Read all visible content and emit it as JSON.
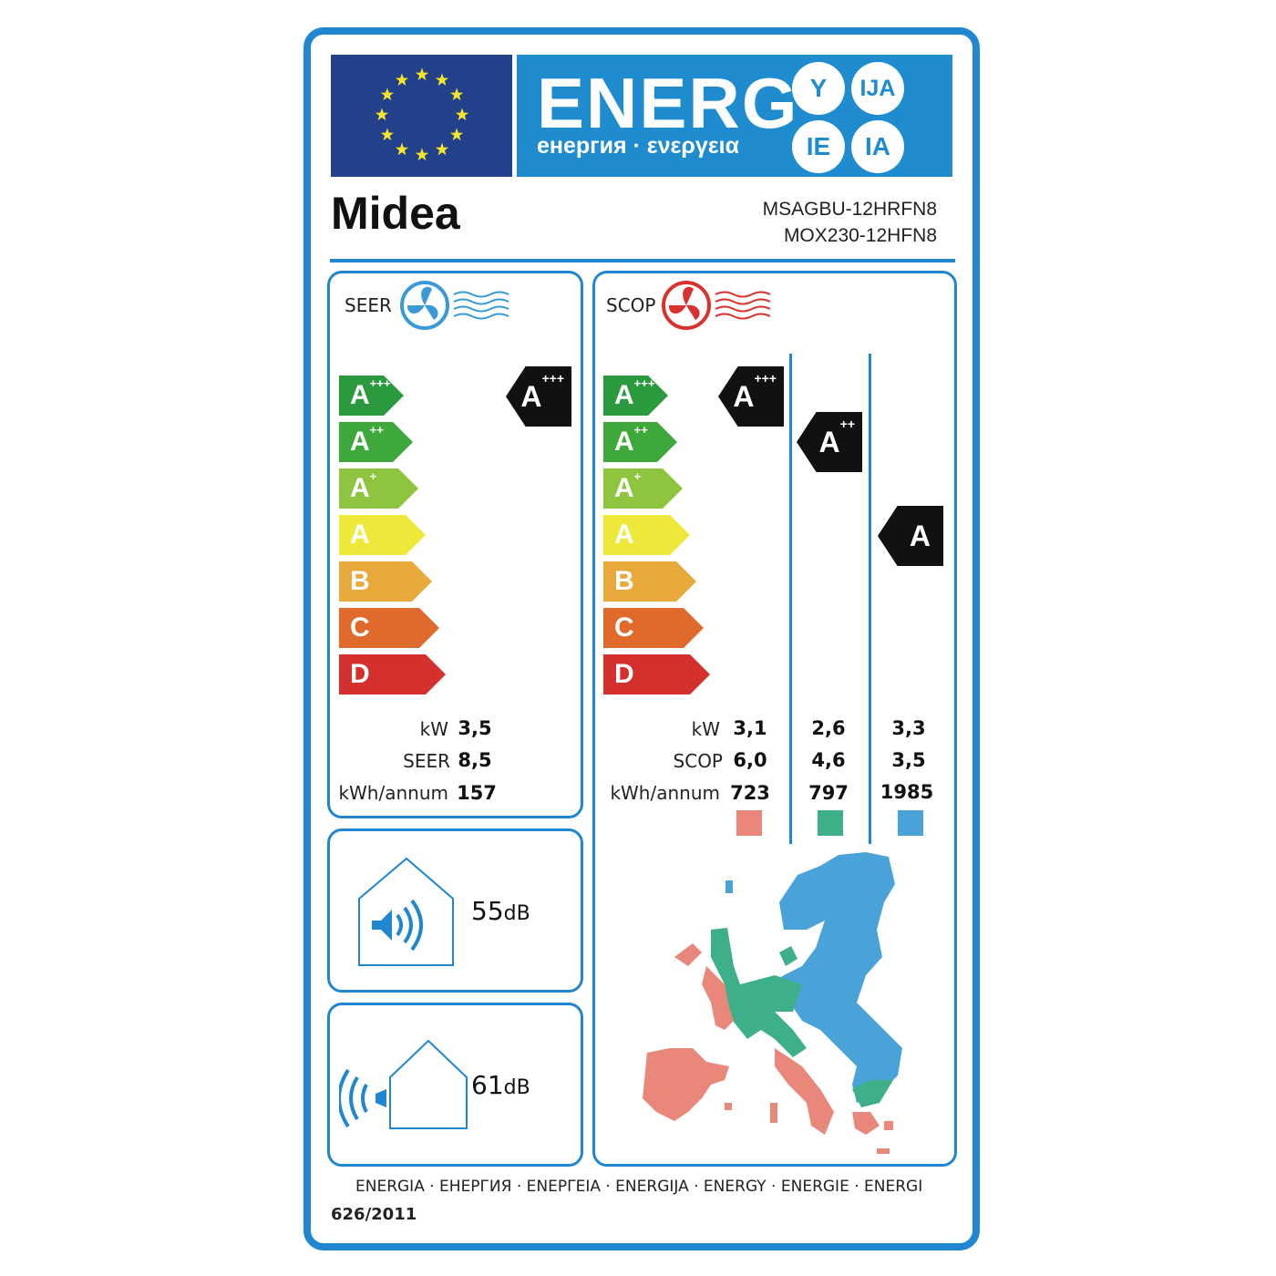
{
  "header": {
    "energy_word": "ENERG",
    "energy_subtitle": "енергия · ενεργεια",
    "suffixes": [
      "Y",
      "IJA",
      "IE",
      "IA"
    ]
  },
  "supplier": {
    "brand": "Midea",
    "models": [
      "MSAGBU-12HRFN8",
      "MOX230-12HFN8"
    ]
  },
  "scale": {
    "classes": [
      {
        "base": "A",
        "sup": "+++",
        "color": "#2b9a3f"
      },
      {
        "base": "A",
        "sup": "++",
        "color": "#3ea83a"
      },
      {
        "base": "A",
        "sup": "+",
        "color": "#8fc43f"
      },
      {
        "base": "A",
        "sup": "",
        "color": "#eee83a"
      },
      {
        "base": "B",
        "sup": "",
        "color": "#e9a83a"
      },
      {
        "base": "C",
        "sup": "",
        "color": "#e0692c"
      },
      {
        "base": "D",
        "sup": "",
        "color": "#d4302e"
      }
    ]
  },
  "cooling": {
    "title": "SEER",
    "rating": {
      "base": "A",
      "sup": "+++"
    },
    "labels": {
      "kw": "kW",
      "seer": "SEER",
      "annual": "kWh/annum"
    },
    "kw": "3,5",
    "seer": "8,5",
    "annual": "157"
  },
  "heating": {
    "title": "SCOP",
    "labels": {
      "kw": "kW",
      "scop": "SCOP",
      "annual": "kWh/annum"
    },
    "zones": [
      {
        "rating": {
          "base": "A",
          "sup": "+++"
        },
        "kw": "3,1",
        "scop": "6,0",
        "annual": "723",
        "color": "#e8877a"
      },
      {
        "rating": {
          "base": "A",
          "sup": "++"
        },
        "kw": "2,6",
        "scop": "4,6",
        "annual": "797",
        "color": "#3db08a"
      },
      {
        "rating": {
          "base": "A",
          "sup": ""
        },
        "kw": "3,3",
        "scop": "3,5",
        "annual": "1985",
        "color": "#4aa3d8"
      }
    ]
  },
  "noise": {
    "indoor": {
      "value": "55",
      "unit": "dB"
    },
    "outdoor": {
      "value": "61",
      "unit": "dB"
    }
  },
  "footer": {
    "languages": "ENERGIA · ЕНЕРГИЯ · ΕΝΕΡΓΕΙΑ · ENERGIJA · ENERGY · ENERGIE · ENERGI",
    "regulation": "626/2011"
  },
  "colors": {
    "frame": "#1f86cf",
    "eu_flag": "#22418a",
    "banner": "#1e8ccf",
    "star": "#f5e52a"
  }
}
